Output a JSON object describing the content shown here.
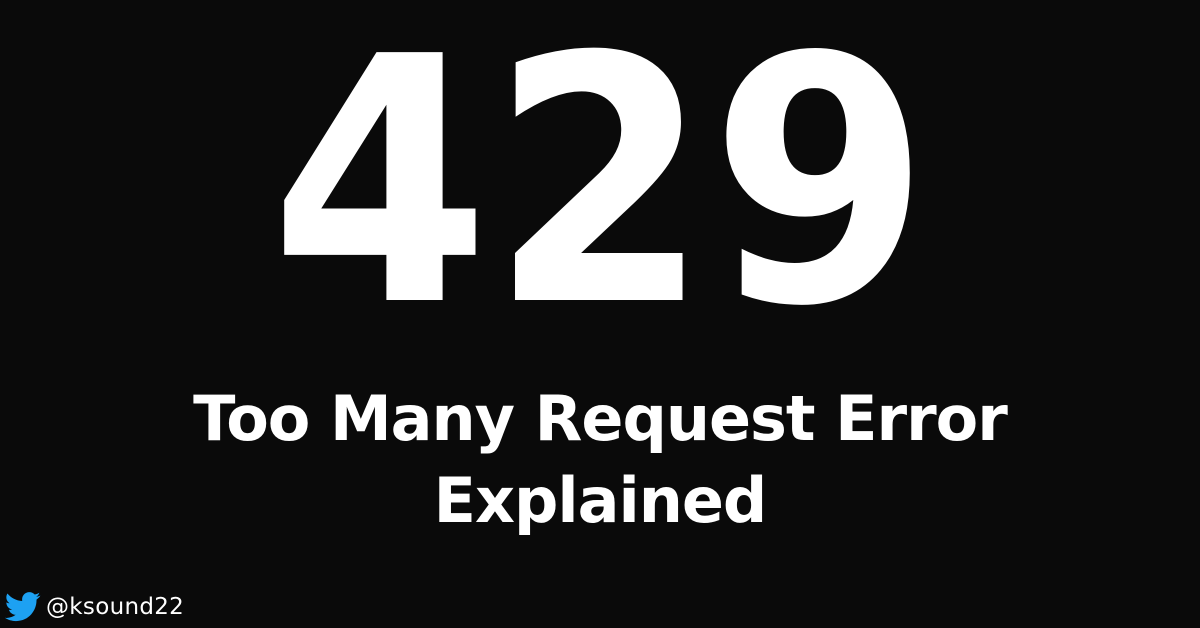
{
  "banner": {
    "code": "429",
    "headline_line1": "Too Many Request Error",
    "headline_line2": "Explained"
  },
  "credit": {
    "icon": "twitter-bird-icon",
    "handle": "@ksound22"
  },
  "colors": {
    "background": "#0a0a0a",
    "text": "#ffffff",
    "accent_icon": "#1da1f2"
  }
}
